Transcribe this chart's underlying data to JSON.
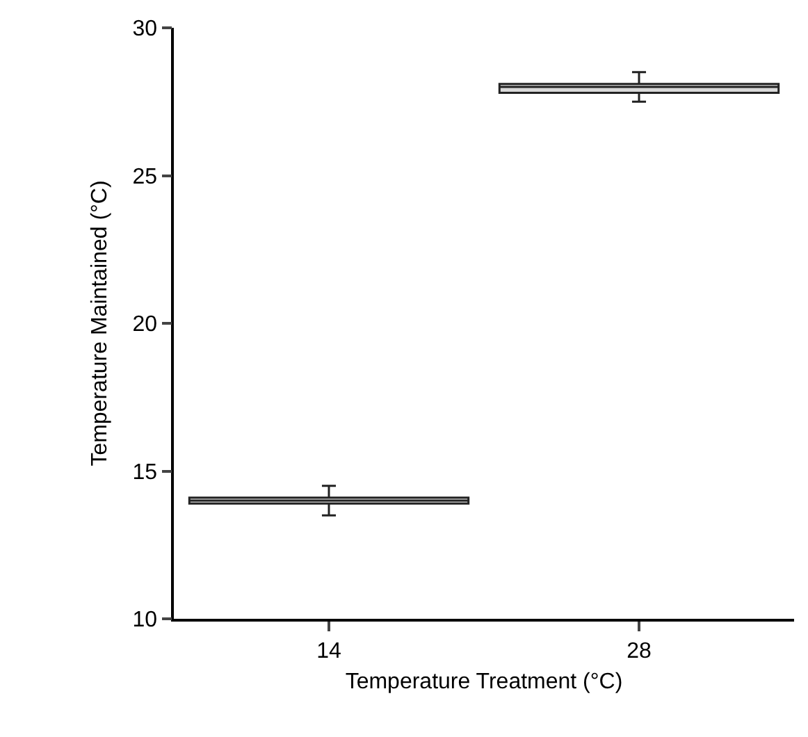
{
  "chart_data": {
    "type": "box",
    "xlabel": "Temperature Treatment (°C)",
    "ylabel": "Temperature Maintained (°C)",
    "categories": [
      "14",
      "28"
    ],
    "series": [
      {
        "color": "#d9d9d9",
        "boxes": [
          {
            "low": 13.5,
            "q1": 13.9,
            "median": 14,
            "q3": 14.1,
            "high": 14.5
          },
          {
            "low": 27.5,
            "q1": 27.8,
            "median": 28,
            "q3": 28.1,
            "high": 28.5
          }
        ]
      }
    ],
    "ylim": [
      10,
      30
    ],
    "yticks": [
      10,
      15,
      20,
      25,
      30
    ],
    "grid": false
  }
}
